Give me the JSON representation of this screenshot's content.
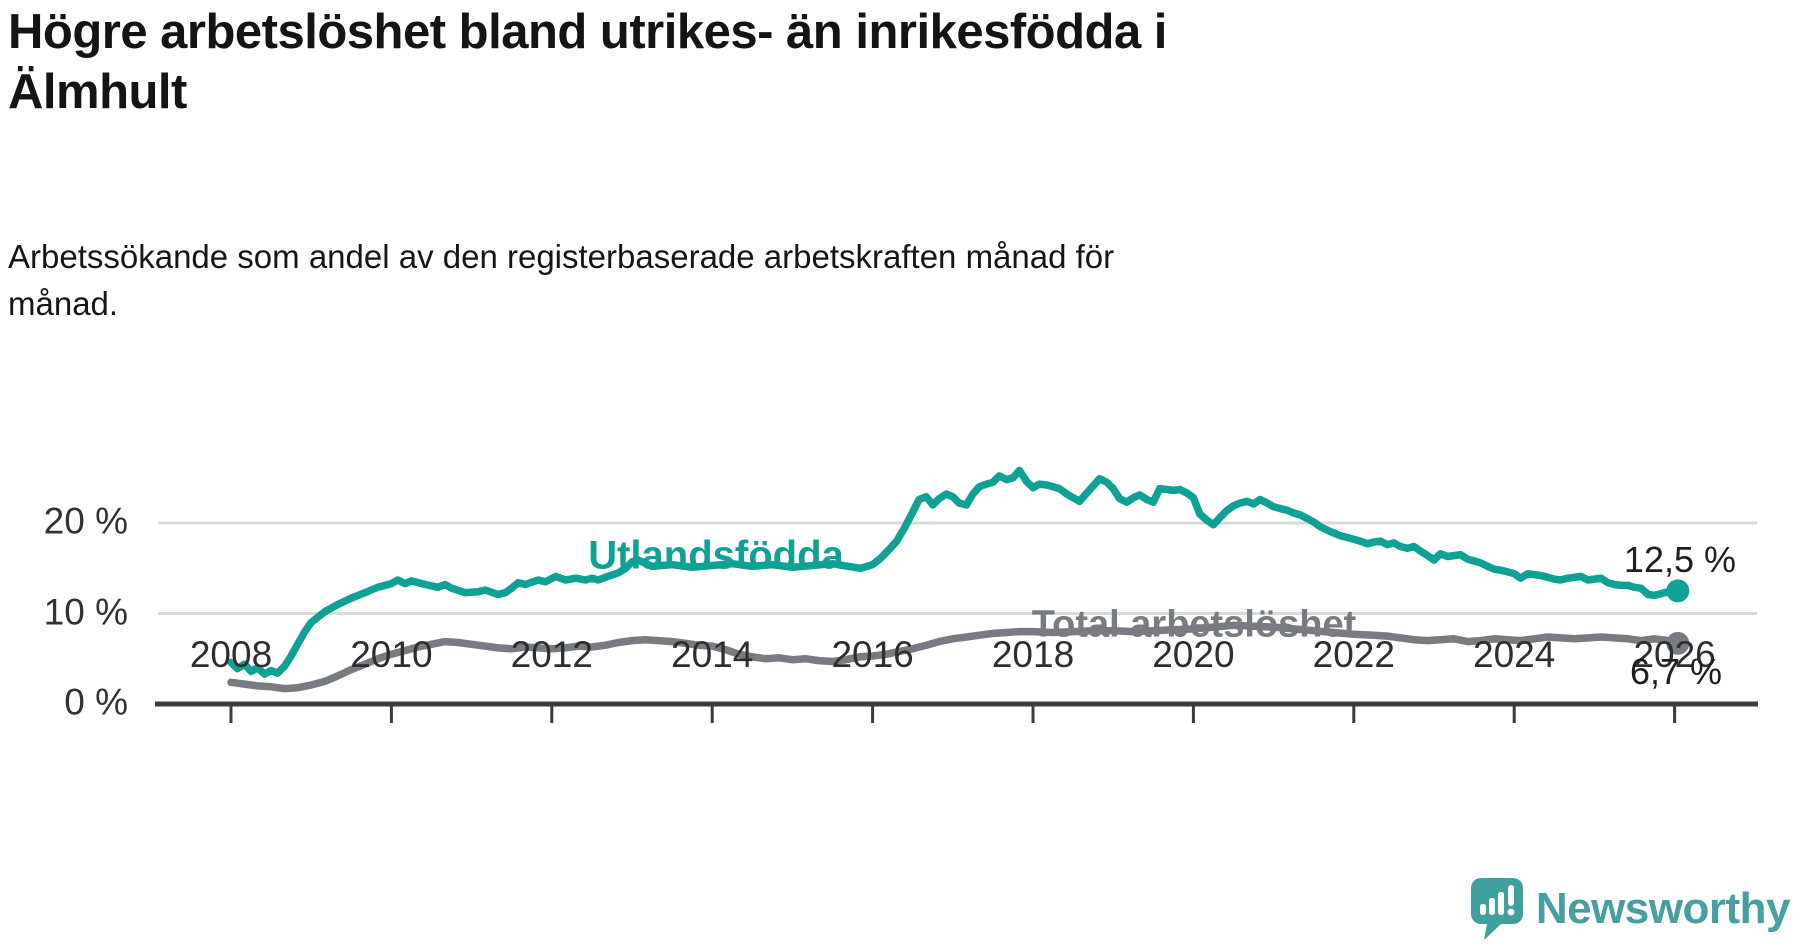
{
  "title_lines": [
    "Högre arbetslöshet bland utrikes- än inrikesfödda i",
    "Älmhult"
  ],
  "subtitle_lines": [
    "Arbetssökande som andel av den registerbaserade arbetskraften månad för",
    "månad."
  ],
  "colors": {
    "background": "#ffffff",
    "accent_teal": "#0fa294",
    "line_gray": "#7a7a82",
    "gridline": "#dadada",
    "axis": "#3c3c3c",
    "tick_text": "#2e2e2e",
    "end_label_text": "#1f1f1f",
    "logo_teal": "#489fa0"
  },
  "branding": {
    "logo_text": "Newsworthy",
    "logo_icon": "newsworthy-speech-bubble-chart-icon"
  },
  "chart_data": {
    "type": "line",
    "title": "Högre arbetslöshet bland utrikes- än inrikesfödda i Älmhult",
    "subtitle": "Arbetssökande som andel av den registerbaserade arbetskraften månad för månad.",
    "unit": "%",
    "grid": "horizontal",
    "legend_position": "inline-labels",
    "x_axis": {
      "ticks": [
        2008,
        2010,
        2012,
        2014,
        2016,
        2018,
        2020,
        2022,
        2024,
        2026
      ]
    },
    "y_axis": {
      "ticks": [
        {
          "value": 0,
          "label": "0 %"
        },
        {
          "value": 10,
          "label": "10 %"
        },
        {
          "value": 20,
          "label": "20 %"
        }
      ],
      "gridlines": [
        10,
        20
      ],
      "range": [
        0,
        27
      ]
    },
    "series": [
      {
        "name": "Utlandsfödda",
        "color": "#0fa294",
        "end_label": "12,5 %",
        "end_value": 12.5,
        "points": [
          [
            2008.0,
            4.6
          ],
          [
            2008.08,
            3.9
          ],
          [
            2008.17,
            4.4
          ],
          [
            2008.25,
            3.6
          ],
          [
            2008.33,
            4.0
          ],
          [
            2008.42,
            3.3
          ],
          [
            2008.5,
            3.7
          ],
          [
            2008.58,
            3.4
          ],
          [
            2008.67,
            4.2
          ],
          [
            2008.75,
            5.3
          ],
          [
            2008.83,
            6.6
          ],
          [
            2008.92,
            8.0
          ],
          [
            2009.0,
            9.0
          ],
          [
            2009.17,
            10.2
          ],
          [
            2009.33,
            11.0
          ],
          [
            2009.5,
            11.7
          ],
          [
            2009.67,
            12.3
          ],
          [
            2009.83,
            12.9
          ],
          [
            2010.0,
            13.3
          ],
          [
            2010.08,
            13.7
          ],
          [
            2010.17,
            13.3
          ],
          [
            2010.25,
            13.6
          ],
          [
            2010.42,
            13.2
          ],
          [
            2010.58,
            12.9
          ],
          [
            2010.67,
            13.2
          ],
          [
            2010.75,
            12.8
          ],
          [
            2010.92,
            12.3
          ],
          [
            2011.08,
            12.4
          ],
          [
            2011.17,
            12.6
          ],
          [
            2011.33,
            12.1
          ],
          [
            2011.42,
            12.3
          ],
          [
            2011.5,
            12.8
          ],
          [
            2011.58,
            13.4
          ],
          [
            2011.67,
            13.2
          ],
          [
            2011.83,
            13.7
          ],
          [
            2011.92,
            13.5
          ],
          [
            2012.05,
            14.1
          ],
          [
            2012.17,
            13.7
          ],
          [
            2012.3,
            13.9
          ],
          [
            2012.42,
            13.7
          ],
          [
            2012.5,
            13.9
          ],
          [
            2012.58,
            13.7
          ],
          [
            2012.7,
            14.1
          ],
          [
            2012.83,
            14.5
          ],
          [
            2012.92,
            15.0
          ],
          [
            2013.0,
            15.7
          ],
          [
            2013.08,
            15.9
          ],
          [
            2013.25,
            15.2
          ],
          [
            2013.5,
            15.4
          ],
          [
            2013.75,
            15.1
          ],
          [
            2014.0,
            15.3
          ],
          [
            2014.25,
            15.5
          ],
          [
            2014.5,
            15.2
          ],
          [
            2014.75,
            15.4
          ],
          [
            2015.0,
            15.1
          ],
          [
            2015.25,
            15.3
          ],
          [
            2015.5,
            15.5
          ],
          [
            2015.7,
            15.2
          ],
          [
            2015.85,
            15.0
          ],
          [
            2016.0,
            15.4
          ],
          [
            2016.1,
            16.1
          ],
          [
            2016.2,
            17.0
          ],
          [
            2016.3,
            18.0
          ],
          [
            2016.4,
            19.5
          ],
          [
            2016.5,
            21.2
          ],
          [
            2016.58,
            22.6
          ],
          [
            2016.67,
            22.9
          ],
          [
            2016.75,
            22.0
          ],
          [
            2016.83,
            22.7
          ],
          [
            2016.92,
            23.2
          ],
          [
            2017.0,
            22.9
          ],
          [
            2017.08,
            22.2
          ],
          [
            2017.17,
            22.0
          ],
          [
            2017.25,
            23.2
          ],
          [
            2017.33,
            24.0
          ],
          [
            2017.42,
            24.3
          ],
          [
            2017.5,
            24.5
          ],
          [
            2017.58,
            25.2
          ],
          [
            2017.67,
            24.8
          ],
          [
            2017.75,
            25.0
          ],
          [
            2017.83,
            25.8
          ],
          [
            2017.92,
            24.6
          ],
          [
            2018.0,
            23.9
          ],
          [
            2018.08,
            24.3
          ],
          [
            2018.17,
            24.2
          ],
          [
            2018.25,
            24.0
          ],
          [
            2018.33,
            23.8
          ],
          [
            2018.42,
            23.2
          ],
          [
            2018.5,
            22.8
          ],
          [
            2018.58,
            22.4
          ],
          [
            2018.67,
            23.3
          ],
          [
            2018.75,
            24.1
          ],
          [
            2018.83,
            24.9
          ],
          [
            2018.92,
            24.5
          ],
          [
            2019.0,
            23.8
          ],
          [
            2019.08,
            22.7
          ],
          [
            2019.17,
            22.3
          ],
          [
            2019.25,
            22.8
          ],
          [
            2019.33,
            23.1
          ],
          [
            2019.42,
            22.6
          ],
          [
            2019.5,
            22.3
          ],
          [
            2019.58,
            23.8
          ],
          [
            2019.67,
            23.7
          ],
          [
            2019.75,
            23.6
          ],
          [
            2019.83,
            23.7
          ],
          [
            2019.92,
            23.3
          ],
          [
            2020.0,
            22.8
          ],
          [
            2020.08,
            21.0
          ],
          [
            2020.17,
            20.3
          ],
          [
            2020.25,
            19.8
          ],
          [
            2020.33,
            20.6
          ],
          [
            2020.42,
            21.4
          ],
          [
            2020.5,
            21.9
          ],
          [
            2020.58,
            22.2
          ],
          [
            2020.67,
            22.4
          ],
          [
            2020.75,
            22.1
          ],
          [
            2020.83,
            22.6
          ],
          [
            2020.92,
            22.2
          ],
          [
            2021.0,
            21.8
          ],
          [
            2021.08,
            21.6
          ],
          [
            2021.17,
            21.4
          ],
          [
            2021.25,
            21.1
          ],
          [
            2021.33,
            20.9
          ],
          [
            2021.42,
            20.5
          ],
          [
            2021.5,
            20.1
          ],
          [
            2021.58,
            19.6
          ],
          [
            2021.67,
            19.2
          ],
          [
            2021.75,
            18.9
          ],
          [
            2021.83,
            18.6
          ],
          [
            2021.92,
            18.4
          ],
          [
            2022.0,
            18.2
          ],
          [
            2022.08,
            18.0
          ],
          [
            2022.17,
            17.7
          ],
          [
            2022.25,
            17.9
          ],
          [
            2022.33,
            18.0
          ],
          [
            2022.42,
            17.6
          ],
          [
            2022.5,
            17.8
          ],
          [
            2022.58,
            17.4
          ],
          [
            2022.67,
            17.2
          ],
          [
            2022.75,
            17.4
          ],
          [
            2022.83,
            16.9
          ],
          [
            2022.92,
            16.4
          ],
          [
            2023.0,
            15.9
          ],
          [
            2023.08,
            16.6
          ],
          [
            2023.17,
            16.3
          ],
          [
            2023.25,
            16.4
          ],
          [
            2023.33,
            16.5
          ],
          [
            2023.42,
            16.0
          ],
          [
            2023.5,
            15.8
          ],
          [
            2023.58,
            15.6
          ],
          [
            2023.67,
            15.2
          ],
          [
            2023.75,
            14.9
          ],
          [
            2023.83,
            14.8
          ],
          [
            2023.92,
            14.6
          ],
          [
            2024.0,
            14.4
          ],
          [
            2024.08,
            13.9
          ],
          [
            2024.17,
            14.4
          ],
          [
            2024.25,
            14.3
          ],
          [
            2024.33,
            14.2
          ],
          [
            2024.42,
            14.0
          ],
          [
            2024.5,
            13.8
          ],
          [
            2024.58,
            13.7
          ],
          [
            2024.67,
            13.9
          ],
          [
            2024.75,
            14.0
          ],
          [
            2024.83,
            14.1
          ],
          [
            2024.92,
            13.7
          ],
          [
            2025.0,
            13.8
          ],
          [
            2025.08,
            13.9
          ],
          [
            2025.17,
            13.4
          ],
          [
            2025.25,
            13.2
          ],
          [
            2025.33,
            13.1
          ],
          [
            2025.42,
            13.1
          ],
          [
            2025.5,
            12.9
          ],
          [
            2025.58,
            12.8
          ],
          [
            2025.67,
            12.1
          ],
          [
            2025.75,
            12.0
          ],
          [
            2025.83,
            12.2
          ],
          [
            2025.92,
            12.4
          ],
          [
            2026.04,
            12.5
          ]
        ]
      },
      {
        "name": "Total arbetslöshet",
        "color": "#7a7a82",
        "end_label": "6,7 %",
        "end_value": 6.7,
        "points": [
          [
            2008.0,
            2.4
          ],
          [
            2008.17,
            2.2
          ],
          [
            2008.33,
            2.0
          ],
          [
            2008.5,
            1.9
          ],
          [
            2008.67,
            1.7
          ],
          [
            2008.83,
            1.8
          ],
          [
            2009.0,
            2.1
          ],
          [
            2009.17,
            2.5
          ],
          [
            2009.33,
            3.1
          ],
          [
            2009.5,
            3.8
          ],
          [
            2009.67,
            4.4
          ],
          [
            2009.83,
            5.0
          ],
          [
            2010.0,
            5.5
          ],
          [
            2010.17,
            5.9
          ],
          [
            2010.33,
            6.3
          ],
          [
            2010.5,
            6.6
          ],
          [
            2010.67,
            6.9
          ],
          [
            2010.83,
            6.8
          ],
          [
            2011.0,
            6.6
          ],
          [
            2011.17,
            6.4
          ],
          [
            2011.33,
            6.2
          ],
          [
            2011.5,
            6.1
          ],
          [
            2011.67,
            6.3
          ],
          [
            2011.83,
            6.2
          ],
          [
            2012.0,
            6.1
          ],
          [
            2012.17,
            6.2
          ],
          [
            2012.33,
            6.4
          ],
          [
            2012.5,
            6.3
          ],
          [
            2012.67,
            6.5
          ],
          [
            2012.83,
            6.8
          ],
          [
            2013.0,
            7.0
          ],
          [
            2013.17,
            7.1
          ],
          [
            2013.33,
            7.0
          ],
          [
            2013.5,
            6.9
          ],
          [
            2013.67,
            6.7
          ],
          [
            2013.83,
            6.5
          ],
          [
            2014.0,
            6.4
          ],
          [
            2014.17,
            6.0
          ],
          [
            2014.33,
            5.5
          ],
          [
            2014.5,
            5.2
          ],
          [
            2014.67,
            5.0
          ],
          [
            2014.83,
            5.1
          ],
          [
            2015.0,
            4.9
          ],
          [
            2015.17,
            5.0
          ],
          [
            2015.33,
            4.8
          ],
          [
            2015.5,
            4.7
          ],
          [
            2015.67,
            4.9
          ],
          [
            2015.83,
            5.2
          ],
          [
            2016.0,
            5.3
          ],
          [
            2016.17,
            5.5
          ],
          [
            2016.33,
            5.8
          ],
          [
            2016.5,
            6.1
          ],
          [
            2016.67,
            6.5
          ],
          [
            2016.83,
            6.9
          ],
          [
            2017.0,
            7.2
          ],
          [
            2017.17,
            7.4
          ],
          [
            2017.33,
            7.6
          ],
          [
            2017.5,
            7.8
          ],
          [
            2017.67,
            7.9
          ],
          [
            2017.83,
            8.0
          ],
          [
            2018.0,
            8.0
          ],
          [
            2018.25,
            7.9
          ],
          [
            2018.5,
            8.0
          ],
          [
            2018.75,
            8.1
          ],
          [
            2019.0,
            8.1
          ],
          [
            2019.25,
            8.0
          ],
          [
            2019.5,
            8.1
          ],
          [
            2019.75,
            8.2
          ],
          [
            2020.0,
            8.3
          ],
          [
            2020.25,
            8.5
          ],
          [
            2020.5,
            8.7
          ],
          [
            2020.75,
            8.6
          ],
          [
            2021.0,
            8.5
          ],
          [
            2021.25,
            8.3
          ],
          [
            2021.5,
            8.1
          ],
          [
            2021.75,
            7.9
          ],
          [
            2022.0,
            7.7
          ],
          [
            2022.25,
            7.6
          ],
          [
            2022.42,
            7.5
          ],
          [
            2022.58,
            7.3
          ],
          [
            2022.75,
            7.1
          ],
          [
            2022.92,
            7.0
          ],
          [
            2023.08,
            7.1
          ],
          [
            2023.25,
            7.2
          ],
          [
            2023.42,
            6.9
          ],
          [
            2023.58,
            7.0
          ],
          [
            2023.75,
            7.2
          ],
          [
            2023.92,
            7.1
          ],
          [
            2024.08,
            7.0
          ],
          [
            2024.25,
            7.2
          ],
          [
            2024.42,
            7.4
          ],
          [
            2024.58,
            7.3
          ],
          [
            2024.75,
            7.2
          ],
          [
            2024.92,
            7.3
          ],
          [
            2025.08,
            7.4
          ],
          [
            2025.25,
            7.3
          ],
          [
            2025.42,
            7.2
          ],
          [
            2025.58,
            7.0
          ],
          [
            2025.75,
            7.2
          ],
          [
            2025.92,
            7.0
          ],
          [
            2026.04,
            6.7
          ]
        ]
      }
    ]
  }
}
